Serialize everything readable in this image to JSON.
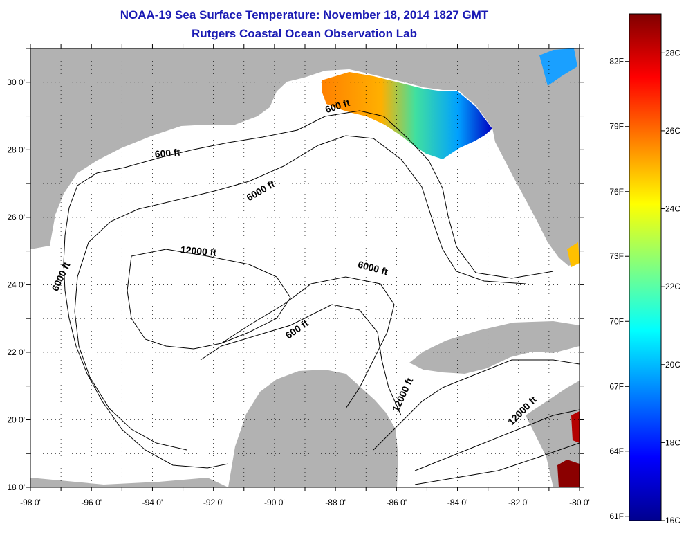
{
  "title_line1": "NOAA-19 Sea Surface Temperature:  November 18, 2014 1827 GMT",
  "title_line2": "Rutgers Coastal Ocean Observation Lab",
  "map": {
    "lon_min": -98,
    "lon_max": -80,
    "lat_min": 18,
    "lat_max": 31,
    "lon_ticks": [
      {
        "value": -98,
        "label": "-98 0'"
      },
      {
        "value": -96,
        "label": "-96 0'"
      },
      {
        "value": -94,
        "label": "-94 0'"
      },
      {
        "value": -92,
        "label": "-92 0'"
      },
      {
        "value": -90,
        "label": "-90 0'"
      },
      {
        "value": -88,
        "label": "-88 0'"
      },
      {
        "value": -86,
        "label": "-86 0'"
      },
      {
        "value": -84,
        "label": "-84 0'"
      },
      {
        "value": -82,
        "label": "-82 0'"
      },
      {
        "value": -80,
        "label": "-80 0'"
      }
    ],
    "lat_ticks": [
      {
        "value": 18,
        "label": "18 0'"
      },
      {
        "value": 20,
        "label": "20 0'"
      },
      {
        "value": 22,
        "label": "22 0'"
      },
      {
        "value": 24,
        "label": "24 0'"
      },
      {
        "value": 26,
        "label": "26 0'"
      },
      {
        "value": 28,
        "label": "28 0'"
      },
      {
        "value": 30,
        "label": "30 0'"
      }
    ],
    "contour_labels": [
      {
        "text": "600 ft",
        "lon": -87.9,
        "lat": 29.2,
        "angle": -18
      },
      {
        "text": "600 ft",
        "lon": -93.5,
        "lat": 27.8,
        "angle": -5
      },
      {
        "text": "6000 ft",
        "lon": -90.4,
        "lat": 26.7,
        "angle": -30
      },
      {
        "text": "6000 ft",
        "lon": -96.9,
        "lat": 24.2,
        "angle": -65
      },
      {
        "text": "12000 ft",
        "lon": -92.5,
        "lat": 24.9,
        "angle": 5
      },
      {
        "text": "6000 ft",
        "lon": -86.8,
        "lat": 24.4,
        "angle": 15
      },
      {
        "text": "600 ft",
        "lon": -89.2,
        "lat": 22.6,
        "angle": -35
      },
      {
        "text": "12000 ft",
        "lon": -85.7,
        "lat": 20.7,
        "angle": -65
      },
      {
        "text": "12000 ft",
        "lon": -81.8,
        "lat": 20.2,
        "angle": -45
      }
    ]
  },
  "colorbar": {
    "min_c": 16,
    "max_c": 29,
    "colors": [
      "#00008f",
      "#0000ff",
      "#0080ff",
      "#00ffff",
      "#80ff80",
      "#ffff00",
      "#ff8000",
      "#ff0000",
      "#800000"
    ],
    "celsius_labels": [
      {
        "value": 16,
        "label": "16C"
      },
      {
        "value": 18,
        "label": "18C"
      },
      {
        "value": 20,
        "label": "20C"
      },
      {
        "value": 22,
        "label": "22C"
      },
      {
        "value": 24,
        "label": "24C"
      },
      {
        "value": 26,
        "label": "26C"
      },
      {
        "value": 28,
        "label": "28C"
      }
    ],
    "fahrenheit_labels": [
      {
        "value": 16.11,
        "label": "61F"
      },
      {
        "value": 17.78,
        "label": "64F"
      },
      {
        "value": 19.44,
        "label": "67F"
      },
      {
        "value": 21.11,
        "label": "70F"
      },
      {
        "value": 22.78,
        "label": "73F"
      },
      {
        "value": 24.44,
        "label": "76F"
      },
      {
        "value": 26.11,
        "label": "79F"
      },
      {
        "value": 27.78,
        "label": "82F"
      }
    ]
  },
  "colors": {
    "title": "#1a1ab4",
    "land": "#b2b2b2",
    "frame": "#000000"
  }
}
